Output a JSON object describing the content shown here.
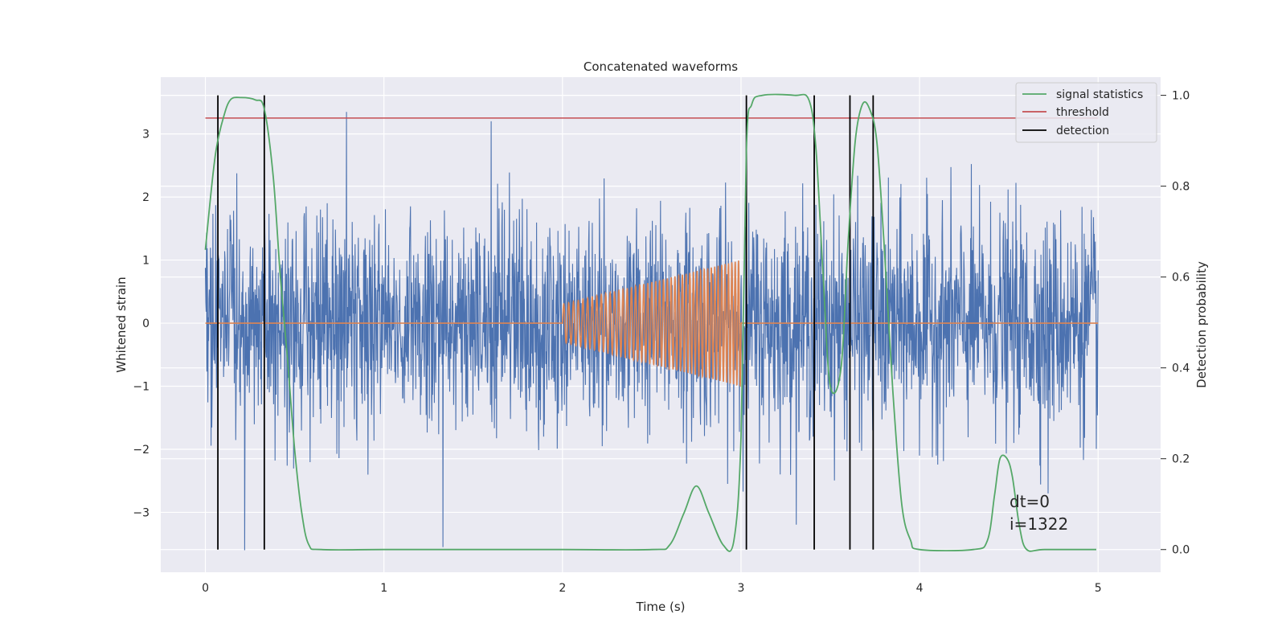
{
  "chart_data": {
    "type": "line",
    "title": "Concatenated waveforms",
    "xlabel": "Time (s)",
    "ylabel_left": "Whitened strain",
    "ylabel_right": "Detection probability",
    "xlim": [
      -0.25,
      5.35
    ],
    "ylim_left": [
      -3.95,
      3.9
    ],
    "ylim_right": [
      -0.05,
      1.04
    ],
    "xticks": [
      0,
      1,
      2,
      3,
      4,
      5
    ],
    "yticks_left": [
      -3,
      -2,
      -1,
      0,
      1,
      2,
      3
    ],
    "yticks_right": [
      0.0,
      0.2,
      0.4,
      0.6,
      0.8,
      1.0
    ],
    "yticks_right_labels": [
      "0.0",
      "0.2",
      "0.4",
      "0.6",
      "0.8",
      "1.0"
    ],
    "grid": true,
    "legend_position": "top-right",
    "legend": [
      {
        "label": "signal statistics",
        "color": "#55a868"
      },
      {
        "label": "threshold",
        "color": "#c44e52"
      },
      {
        "label": "detection",
        "color": "#000000"
      }
    ],
    "colors": {
      "strain": "#4c72b0",
      "injected_waveform": "#dd8452",
      "signal_statistics": "#55a868",
      "threshold": "#c44e52",
      "detection": "#000000",
      "plot_background": "#eaeaf2"
    },
    "strain": {
      "t_start": 0,
      "t_end": 5,
      "envelope_typical": 2.0,
      "peaks": [
        {
          "t": 0.79,
          "y": 3.35
        },
        {
          "t": 1.6,
          "y": 3.2
        },
        {
          "t": 0.22,
          "y": -3.6
        },
        {
          "t": 1.33,
          "y": -3.55
        },
        {
          "t": 4.72,
          "y": -2.7
        }
      ]
    },
    "injected_waveform": {
      "t_start": 2.0,
      "t_end": 3.0,
      "amplitude_start": 0.3,
      "amplitude_end": 1.0,
      "approx_cycles": 45
    },
    "signal_statistics": {
      "t": [
        0.0,
        0.03,
        0.06,
        0.1,
        0.14,
        0.2,
        0.28,
        0.33,
        0.38,
        0.42,
        0.46,
        0.5,
        0.54,
        0.58,
        0.65,
        1.0,
        1.5,
        2.0,
        2.5,
        2.6,
        2.68,
        2.75,
        2.82,
        2.9,
        2.96,
        3.0,
        3.03,
        3.06,
        3.12,
        3.3,
        3.38,
        3.42,
        3.46,
        3.5,
        3.56,
        3.6,
        3.64,
        3.68,
        3.72,
        3.76,
        3.8,
        3.85,
        3.9,
        3.95,
        4.0,
        4.3,
        4.38,
        4.42,
        4.45,
        4.49,
        4.52,
        4.56,
        4.6,
        4.7,
        4.99
      ],
      "y": [
        0.66,
        0.78,
        0.88,
        0.95,
        0.99,
        0.995,
        0.99,
        0.97,
        0.82,
        0.6,
        0.42,
        0.22,
        0.08,
        0.01,
        0.0,
        0.0,
        0.0,
        0.0,
        0.0,
        0.01,
        0.08,
        0.14,
        0.08,
        0.01,
        0.02,
        0.25,
        0.88,
        0.98,
        1.0,
        1.0,
        0.99,
        0.88,
        0.6,
        0.36,
        0.4,
        0.68,
        0.9,
        0.98,
        0.97,
        0.9,
        0.68,
        0.35,
        0.1,
        0.02,
        0.0,
        0.0,
        0.02,
        0.12,
        0.2,
        0.2,
        0.16,
        0.05,
        0.0,
        0.0,
        0.0
      ]
    },
    "threshold": {
      "value": 0.95,
      "t_start": 0,
      "t_end": 5
    },
    "detections": [
      0.07,
      0.33,
      3.03,
      3.41,
      3.61,
      3.74
    ],
    "detection_line_range": {
      "ymin": 0.0,
      "ymax": 1.0
    },
    "annotations": [
      "dt=0",
      "i=1322"
    ]
  }
}
